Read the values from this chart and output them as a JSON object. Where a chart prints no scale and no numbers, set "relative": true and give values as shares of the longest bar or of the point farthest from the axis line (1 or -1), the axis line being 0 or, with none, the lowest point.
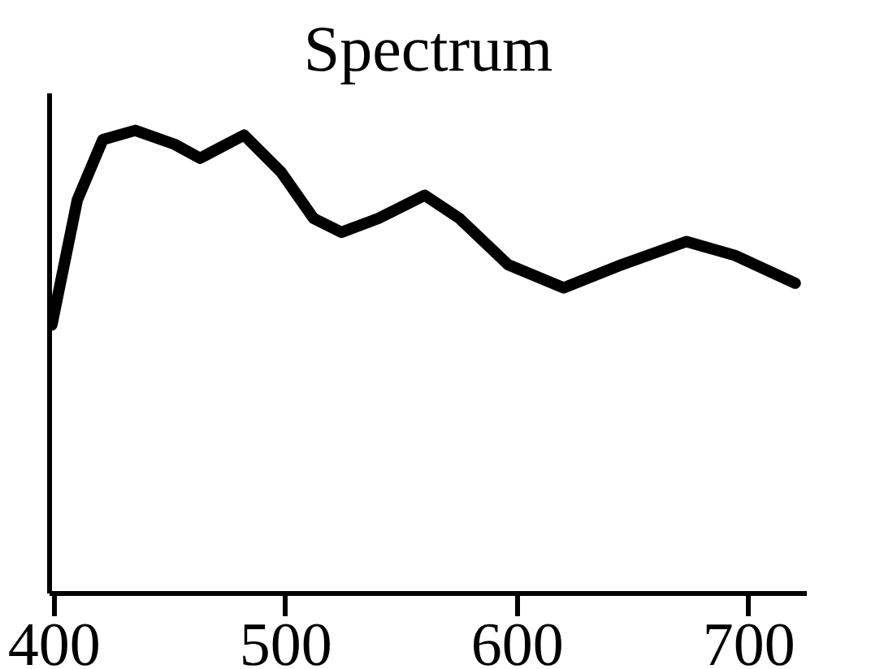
{
  "chart_data": {
    "type": "line",
    "title": "Spectrum",
    "relative": true,
    "x": [
      399,
      410,
      421,
      435,
      452,
      463,
      482,
      498,
      512,
      524,
      540,
      560,
      575,
      596,
      620,
      645,
      673,
      694,
      720
    ],
    "series": [
      {
        "color": "#000000",
        "values": [
          0.58,
          0.85,
          0.98,
          1.0,
          0.97,
          0.94,
          0.99,
          0.91,
          0.81,
          0.78,
          0.81,
          0.86,
          0.81,
          0.71,
          0.66,
          0.71,
          0.76,
          0.73,
          0.67
        ]
      }
    ],
    "xlim": [
      398,
      725
    ],
    "xticks": [
      400,
      500,
      600,
      700
    ],
    "grid": false,
    "line_style": "solid"
  }
}
